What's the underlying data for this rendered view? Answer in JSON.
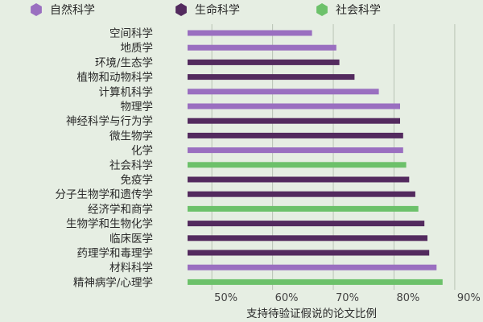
{
  "chart_data": {
    "type": "bar",
    "orientation": "horizontal",
    "xlabel": "支持待验证假说的论文比例",
    "xlim": [
      46,
      92
    ],
    "xticks": [
      "50%",
      "60%",
      "70%",
      "80%",
      "90%"
    ],
    "xtick_values": [
      50,
      60,
      70,
      80,
      90
    ],
    "grid": true,
    "legend_position": "top",
    "legend": [
      {
        "name": "自然科学",
        "color": "#9a6fc0",
        "icon": "hexagon"
      },
      {
        "name": "生命科学",
        "color": "#532a5e",
        "icon": "hexagon"
      },
      {
        "name": "社会科学",
        "color": "#6cc16a",
        "icon": "hexagon"
      }
    ],
    "categories": [
      {
        "label": "空间科学",
        "value": 66.5,
        "group": "自然科学"
      },
      {
        "label": "地质学",
        "value": 70.5,
        "group": "自然科学"
      },
      {
        "label": "环境/生态学",
        "value": 71,
        "group": "生命科学"
      },
      {
        "label": "植物和动物科学",
        "value": 73.5,
        "group": "生命科学"
      },
      {
        "label": "计算机科学",
        "value": 77.5,
        "group": "自然科学"
      },
      {
        "label": "物理学",
        "value": 81,
        "group": "自然科学"
      },
      {
        "label": "神经科学与行为学",
        "value": 81,
        "group": "生命科学"
      },
      {
        "label": "微生物学",
        "value": 81.5,
        "group": "生命科学"
      },
      {
        "label": "化学",
        "value": 81.5,
        "group": "自然科学"
      },
      {
        "label": "社会科学",
        "value": 82,
        "group": "社会科学"
      },
      {
        "label": "免疫学",
        "value": 82.5,
        "group": "生命科学"
      },
      {
        "label": "分子生物学和遗传学",
        "value": 83.5,
        "group": "生命科学"
      },
      {
        "label": "经济学和商学",
        "value": 84,
        "group": "社会科学"
      },
      {
        "label": "生物学和生物化学",
        "value": 85,
        "group": "生命科学"
      },
      {
        "label": "临床医学",
        "value": 85.5,
        "group": "生命科学"
      },
      {
        "label": "药理学和毒理学",
        "value": 85.8,
        "group": "生命科学"
      },
      {
        "label": "材料科学",
        "value": 87,
        "group": "自然科学"
      },
      {
        "label": "精神病学/心理学",
        "value": 88,
        "group": "社会科学"
      }
    ]
  }
}
